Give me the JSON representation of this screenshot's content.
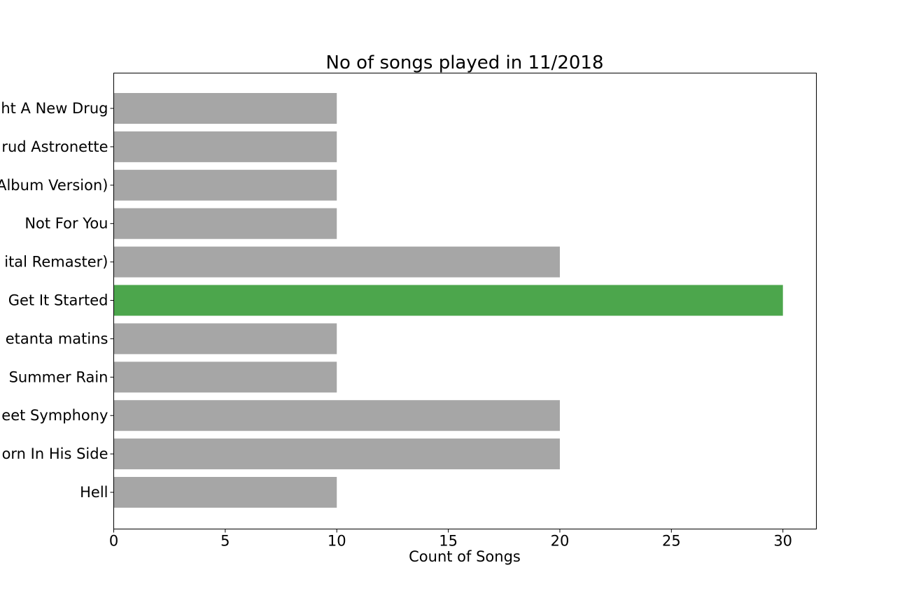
{
  "chart_data": {
    "type": "bar",
    "orientation": "horizontal",
    "title": "No of songs played in 11/2018",
    "xlabel": "Count of Songs",
    "ylabel": "",
    "xlim": [
      0,
      31.5
    ],
    "xticks": [
      0,
      5,
      10,
      15,
      20,
      25,
      30
    ],
    "grid": false,
    "categories": [
      "ht A New Drug",
      "rud Astronette",
      "Album Version)",
      "Not For You",
      "ital Remaster)",
      "Get It Started",
      "etanta matins",
      "Summer Rain",
      "eet Symphony",
      "orn In His Side",
      "Hell"
    ],
    "values": [
      10,
      10,
      10,
      10,
      20,
      30,
      10,
      10,
      20,
      20,
      10
    ],
    "colors": {
      "default": "#a6a6a6",
      "highlight": "#4ca64c"
    },
    "highlight_index": 5
  }
}
